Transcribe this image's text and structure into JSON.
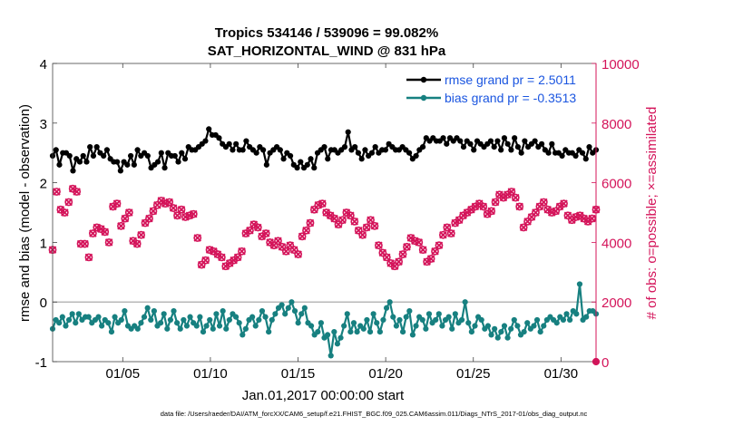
{
  "chart_data": {
    "type": "line",
    "title": "Tropics 534146 / 539096 = 99.082%",
    "subtitle": "SAT_HORIZONTAL_WIND @ 831 hPa",
    "xlabel": "Jan.01,2017 00:00:00 start",
    "ylabel_left": "rmse and bias (model - observation)",
    "ylabel_right": "# of obs: o=possible; ×=assimilated",
    "footnote": "data file: /Users/raeder/DAI/ATM_forcXX/CAM6_setup/f.e21.FHIST_BGC.f09_025.CAM6assim.011/Diags_NTrS_2017-01/obs_diag_output.nc",
    "xlim": [
      1,
      32
    ],
    "ylim_left": [
      -1,
      4
    ],
    "ylim_right": [
      0,
      10000
    ],
    "yticks_left": [
      "4",
      "3",
      "2",
      "1",
      "0",
      "-1"
    ],
    "yticks_left_values": [
      4,
      3,
      2,
      1,
      0,
      -1
    ],
    "yticks_right": [
      "10000",
      "8000",
      "6000",
      "4000",
      "2000",
      "0"
    ],
    "yticks_right_values": [
      10000,
      8000,
      6000,
      4000,
      2000,
      0
    ],
    "xtick_labels": [
      "01/05",
      "01/10",
      "01/15",
      "01/20",
      "01/25",
      "01/30"
    ],
    "xtick_values": [
      5,
      10,
      15,
      20,
      25,
      30
    ],
    "colors": {
      "rmse": "#000000",
      "bias": "#178080",
      "obs": "#d4145a",
      "legend_text": "#1a55e0",
      "zero_line": "#b8b8b8"
    },
    "series": [
      {
        "name": "rmse",
        "legend": "rmse grand pr = 2.5011",
        "values": [
          2.45,
          2.55,
          2.3,
          2.5,
          2.5,
          2.45,
          2.2,
          2.4,
          2.35,
          2.45,
          2.35,
          2.6,
          2.45,
          2.6,
          2.5,
          2.45,
          2.55,
          2.4,
          2.35,
          2.35,
          2.2,
          2.35,
          2.3,
          2.45,
          2.3,
          2.55,
          2.45,
          2.5,
          2.45,
          2.25,
          2.3,
          2.35,
          2.5,
          2.25,
          2.5,
          2.45,
          2.45,
          2.35,
          2.5,
          2.4,
          2.6,
          2.55,
          2.55,
          2.6,
          2.65,
          2.7,
          2.9,
          2.8,
          2.8,
          2.75,
          2.65,
          2.6,
          2.65,
          2.55,
          2.65,
          2.55,
          2.55,
          2.7,
          2.6,
          2.55,
          2.5,
          2.6,
          2.55,
          2.3,
          2.5,
          2.55,
          2.6,
          2.55,
          2.4,
          2.5,
          2.45,
          2.3,
          2.25,
          2.35,
          2.25,
          2.3,
          2.4,
          2.25,
          2.5,
          2.55,
          2.6,
          2.4,
          2.55,
          2.55,
          2.5,
          2.55,
          2.6,
          2.85,
          2.55,
          2.6,
          2.5,
          2.4,
          2.55,
          2.45,
          2.5,
          2.6,
          2.5,
          2.55,
          2.55,
          2.65,
          2.6,
          2.55,
          2.55,
          2.6,
          2.55,
          2.5,
          2.4,
          2.45,
          2.55,
          2.6,
          2.75,
          2.7,
          2.75,
          2.7,
          2.7,
          2.75,
          2.65,
          2.75,
          2.7,
          2.75,
          2.7,
          2.6,
          2.7,
          2.65,
          2.55,
          2.7,
          2.65,
          2.6,
          2.65,
          2.7,
          2.6,
          2.7,
          2.55,
          2.75,
          2.65,
          2.55,
          2.75,
          2.6,
          2.5,
          2.7,
          2.6,
          2.65,
          2.7,
          2.6,
          2.65,
          2.55,
          2.5,
          2.65,
          2.5,
          2.5,
          2.45,
          2.55,
          2.5,
          2.5,
          2.45,
          2.55,
          2.5,
          2.4,
          2.6,
          2.5,
          2.55
        ]
      },
      {
        "name": "bias",
        "legend": "bias grand pr = -0.3513",
        "values": [
          -0.45,
          -0.3,
          -0.35,
          -0.25,
          -0.4,
          -0.3,
          -0.2,
          -0.35,
          -0.2,
          -0.3,
          -0.25,
          -0.25,
          -0.35,
          -0.3,
          -0.25,
          -0.4,
          -0.3,
          -0.35,
          -0.5,
          -0.25,
          -0.35,
          -0.3,
          -0.15,
          -0.4,
          -0.45,
          -0.4,
          -0.45,
          -0.35,
          -0.25,
          -0.1,
          -0.3,
          -0.15,
          -0.4,
          -0.35,
          -0.2,
          -0.45,
          -0.3,
          -0.15,
          -0.35,
          -0.45,
          -0.3,
          -0.4,
          -0.25,
          -0.35,
          -0.4,
          -0.25,
          -0.5,
          -0.4,
          -0.3,
          -0.45,
          -0.2,
          -0.4,
          -0.15,
          -0.45,
          -0.3,
          -0.2,
          -0.25,
          -0.35,
          -0.55,
          -0.45,
          -0.3,
          -0.25,
          -0.4,
          -0.3,
          -0.15,
          -0.25,
          -0.5,
          -0.3,
          -0.2,
          -0.1,
          -0.05,
          -0.2,
          -0.1,
          0.0,
          -0.15,
          -0.35,
          -0.2,
          -0.1,
          -0.35,
          -0.4,
          -0.55,
          -0.5,
          -0.35,
          -0.6,
          -0.55,
          -0.9,
          -0.5,
          -0.7,
          -0.6,
          -0.4,
          -0.2,
          -0.5,
          -0.35,
          -0.5,
          -0.4,
          -0.45,
          -0.3,
          -0.5,
          -0.2,
          -0.35,
          -0.5,
          -0.3,
          -0.1,
          0.0,
          -0.25,
          -0.4,
          -0.3,
          -0.5,
          -0.25,
          -0.15,
          -0.55,
          -0.4,
          -0.25,
          -0.3,
          -0.45,
          -0.2,
          -0.35,
          -0.3,
          -0.2,
          -0.4,
          -0.3,
          -0.25,
          -0.45,
          -0.2,
          -0.35,
          -0.3,
          0.0,
          -0.35,
          -0.5,
          -0.4,
          -0.25,
          -0.3,
          -0.45,
          -0.4,
          -0.55,
          -0.45,
          -0.6,
          -0.5,
          -0.4,
          -0.6,
          -0.45,
          -0.3,
          -0.4,
          -0.55,
          -0.5,
          -0.35,
          -0.45,
          -0.4,
          -0.3,
          -0.5,
          -0.4,
          -0.3,
          -0.25,
          -0.3,
          -0.35,
          -0.25,
          -0.3,
          -0.2,
          -0.3,
          -0.15,
          -0.2,
          0.3,
          -0.3,
          -0.25,
          -0.15,
          -0.15,
          -0.2
        ]
      },
      {
        "name": "obs_possible",
        "values": [
          3750,
          5700,
          5100,
          5000,
          5350,
          5800,
          5700,
          3950,
          3950,
          3500,
          4300,
          4500,
          4450,
          4350,
          4000,
          5200,
          5300,
          4550,
          4800,
          5000,
          4050,
          3950,
          4250,
          4650,
          4800,
          5050,
          5250,
          5400,
          5300,
          5350,
          5150,
          4900,
          5100,
          4850,
          4900,
          4950,
          4150,
          3250,
          3400,
          3750,
          3700,
          3600,
          3500,
          3200,
          3300,
          3400,
          3500,
          3700,
          4300,
          4400,
          4600,
          4500,
          4200,
          4300,
          4000,
          3900,
          4050,
          3850,
          3700,
          3900,
          3750,
          3600,
          4200,
          4400,
          4650,
          5100,
          5250,
          5300,
          5000,
          4900,
          4800,
          4600,
          4750,
          5000,
          4900,
          4700,
          4400,
          4250,
          4500,
          4750,
          4550,
          3900,
          3650,
          3500,
          3300,
          3200,
          3350,
          3600,
          3850,
          4150,
          4050,
          4000,
          3750,
          3350,
          3450,
          3700,
          3900,
          4250,
          4500,
          4300,
          4650,
          4750,
          4900,
          5000,
          5100,
          5200,
          5300,
          5200,
          4950,
          5050,
          5350,
          5600,
          5500,
          5600,
          5700,
          5500,
          5200,
          4500,
          4700,
          4850,
          5000,
          5200,
          5350,
          5100,
          5000,
          5050,
          5200,
          5300,
          4900,
          4750,
          4850,
          4900,
          4800,
          4700,
          4800,
          5100
        ]
      },
      {
        "name": "obs_assimilated",
        "values": [
          3750,
          5700,
          5100,
          5000,
          5350,
          5800,
          5700,
          3950,
          3950,
          3500,
          4300,
          4500,
          4450,
          4350,
          4000,
          5200,
          5300,
          4550,
          4800,
          5000,
          4050,
          3950,
          4250,
          4650,
          4800,
          5050,
          5250,
          5400,
          5300,
          5350,
          5150,
          4900,
          5100,
          4850,
          4900,
          4950,
          4150,
          3250,
          3400,
          3750,
          3700,
          3600,
          3500,
          3200,
          3300,
          3400,
          3500,
          3700,
          4300,
          4400,
          4600,
          4500,
          4200,
          4300,
          4000,
          3900,
          4050,
          3850,
          3700,
          3900,
          3750,
          3600,
          4200,
          4400,
          4650,
          5100,
          5250,
          5300,
          5000,
          4900,
          4800,
          4600,
          4750,
          5000,
          4900,
          4700,
          4400,
          4250,
          4500,
          4750,
          4550,
          3900,
          3650,
          3500,
          3300,
          3200,
          3350,
          3600,
          3850,
          4150,
          4050,
          4000,
          3750,
          3350,
          3450,
          3700,
          3900,
          4250,
          4500,
          4300,
          4650,
          4750,
          4900,
          5000,
          5100,
          5200,
          5300,
          5200,
          4950,
          5050,
          5350,
          5600,
          5500,
          5600,
          5700,
          5500,
          5200,
          4500,
          4700,
          4850,
          5000,
          5200,
          5350,
          5100,
          5000,
          5050,
          5200,
          5300,
          4900,
          4750,
          4850,
          4900,
          4800,
          4700,
          4800,
          5100
        ]
      }
    ]
  }
}
